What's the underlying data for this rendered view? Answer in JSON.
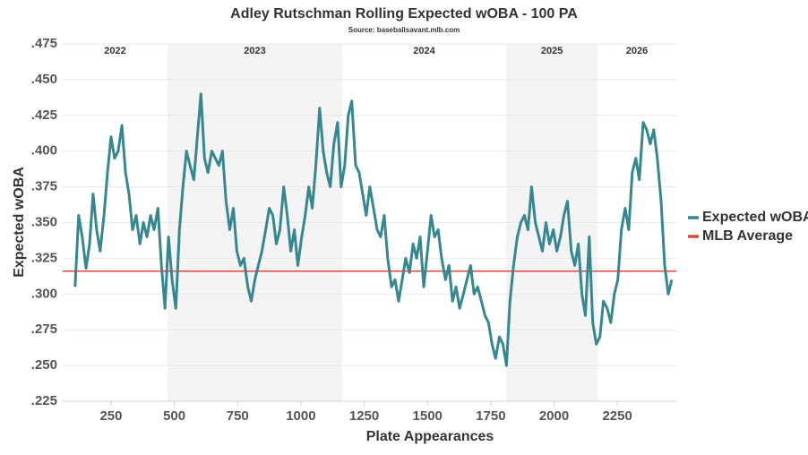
{
  "chart_data": {
    "type": "line",
    "title": "Adley Rutschman Rolling Expected wOBA - 100 PA",
    "subtitle": "Source: baseballsavant.mlb.com",
    "x_label": "Plate Appearances",
    "y_label": "Expected wOBA",
    "xlim": [
      59,
      2483
    ],
    "ylim": [
      0.225,
      0.475
    ],
    "xticks": [
      250,
      500,
      750,
      1000,
      1250,
      1500,
      1750,
      2000,
      2250
    ],
    "yticks": [
      {
        "value": 0.225,
        "label": ".225"
      },
      {
        "value": 0.25,
        "label": ".250"
      },
      {
        "value": 0.275,
        "label": ".275"
      },
      {
        "value": 0.3,
        "label": ".300"
      },
      {
        "value": 0.325,
        "label": ".325"
      },
      {
        "value": 0.35,
        "label": ".350"
      },
      {
        "value": 0.375,
        "label": ".375"
      },
      {
        "value": 0.4,
        "label": ".400"
      },
      {
        "value": 0.425,
        "label": ".425"
      },
      {
        "value": 0.45,
        "label": ".450"
      },
      {
        "value": 0.475,
        "label": ".475"
      }
    ],
    "grid": true,
    "seasons": [
      {
        "label": "2022",
        "start": 59,
        "end": 473
      },
      {
        "label": "2023",
        "start": 473,
        "end": 1163
      },
      {
        "label": "2024",
        "start": 1163,
        "end": 1811
      },
      {
        "label": "2025",
        "start": 1811,
        "end": 2172
      },
      {
        "label": "2026",
        "start": 2172,
        "end": 2483
      }
    ],
    "x": [
      108,
      122,
      136,
      151,
      165,
      179,
      193,
      207,
      222,
      236,
      250,
      264,
      278,
      293,
      307,
      321,
      335,
      349,
      364,
      378,
      392,
      406,
      420,
      435,
      449,
      463,
      477,
      491,
      506,
      520,
      534,
      548,
      562,
      577,
      591,
      605,
      619,
      633,
      648,
      662,
      676,
      690,
      704,
      719,
      733,
      747,
      761,
      775,
      790,
      804,
      818,
      832,
      846,
      861,
      875,
      889,
      903,
      917,
      932,
      946,
      960,
      974,
      988,
      1003,
      1017,
      1031,
      1045,
      1059,
      1074,
      1088,
      1102,
      1116,
      1130,
      1145,
      1159,
      1173,
      1187,
      1201,
      1216,
      1230,
      1244,
      1258,
      1272,
      1287,
      1301,
      1315,
      1329,
      1343,
      1358,
      1372,
      1386,
      1400,
      1414,
      1429,
      1443,
      1457,
      1471,
      1485,
      1500,
      1514,
      1528,
      1542,
      1556,
      1571,
      1585,
      1599,
      1613,
      1627,
      1642,
      1656,
      1670,
      1684,
      1698,
      1713,
      1727,
      1741,
      1755,
      1769,
      1784,
      1798,
      1812,
      1826,
      1840,
      1855,
      1869,
      1883,
      1897,
      1911,
      1926,
      1940,
      1954,
      1968,
      1982,
      1997,
      2011,
      2025,
      2039,
      2053,
      2068,
      2082,
      2096,
      2110,
      2124,
      2139,
      2153,
      2167,
      2181,
      2195,
      2210,
      2224,
      2238,
      2252,
      2266,
      2281,
      2295,
      2309,
      2323,
      2337,
      2352,
      2366,
      2380,
      2394,
      2408,
      2423,
      2437,
      2451,
      2465
    ],
    "series": [
      {
        "name": "Expected wOBA",
        "color": "#36878f",
        "values": [
          0.305,
          0.355,
          0.34,
          0.318,
          0.335,
          0.37,
          0.345,
          0.33,
          0.355,
          0.385,
          0.41,
          0.395,
          0.4,
          0.418,
          0.385,
          0.37,
          0.345,
          0.355,
          0.335,
          0.35,
          0.34,
          0.355,
          0.345,
          0.36,
          0.32,
          0.29,
          0.34,
          0.31,
          0.29,
          0.345,
          0.375,
          0.4,
          0.39,
          0.38,
          0.41,
          0.44,
          0.395,
          0.385,
          0.4,
          0.395,
          0.39,
          0.4,
          0.365,
          0.345,
          0.36,
          0.33,
          0.32,
          0.325,
          0.305,
          0.295,
          0.31,
          0.32,
          0.33,
          0.345,
          0.36,
          0.355,
          0.335,
          0.345,
          0.375,
          0.355,
          0.33,
          0.345,
          0.32,
          0.34,
          0.355,
          0.375,
          0.36,
          0.39,
          0.43,
          0.4,
          0.385,
          0.375,
          0.405,
          0.42,
          0.375,
          0.39,
          0.425,
          0.435,
          0.39,
          0.385,
          0.37,
          0.355,
          0.375,
          0.36,
          0.345,
          0.34,
          0.355,
          0.325,
          0.305,
          0.31,
          0.295,
          0.31,
          0.325,
          0.315,
          0.335,
          0.325,
          0.34,
          0.305,
          0.33,
          0.355,
          0.34,
          0.345,
          0.325,
          0.31,
          0.32,
          0.295,
          0.305,
          0.29,
          0.3,
          0.31,
          0.32,
          0.3,
          0.305,
          0.295,
          0.285,
          0.28,
          0.265,
          0.255,
          0.27,
          0.265,
          0.25,
          0.295,
          0.32,
          0.34,
          0.35,
          0.355,
          0.345,
          0.375,
          0.35,
          0.34,
          0.33,
          0.35,
          0.335,
          0.345,
          0.33,
          0.34,
          0.355,
          0.365,
          0.33,
          0.32,
          0.335,
          0.3,
          0.285,
          0.34,
          0.28,
          0.265,
          0.27,
          0.295,
          0.29,
          0.28,
          0.3,
          0.31,
          0.345,
          0.36,
          0.345,
          0.385,
          0.395,
          0.38,
          0.42,
          0.415,
          0.405,
          0.415,
          0.395,
          0.365,
          0.32,
          0.3,
          0.31
        ]
      },
      {
        "name": "MLB Average",
        "color": "#e0453a",
        "value": 0.316
      }
    ]
  }
}
